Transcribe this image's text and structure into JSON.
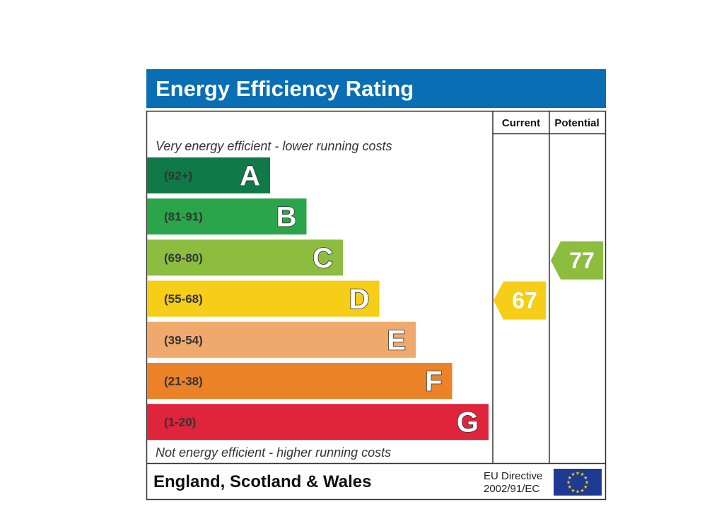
{
  "title": "Energy Efficiency Rating",
  "columns": {
    "current": "Current",
    "potential": "Potential"
  },
  "top_note": "Very energy efficient - lower running costs",
  "bottom_note": "Not energy efficient - higher running costs",
  "region": "England, Scotland & Wales",
  "directive": {
    "line1": "EU Directive",
    "line2": "2002/91/EC"
  },
  "colors": {
    "header": "#0a6eb5",
    "border": "#333333"
  },
  "chart_data": {
    "type": "bar",
    "bands": [
      {
        "letter": "A",
        "range": "(92+)",
        "min": 92,
        "max": 100,
        "color": "#0f7a48"
      },
      {
        "letter": "B",
        "range": "(81-91)",
        "min": 81,
        "max": 91,
        "color": "#2aa54a"
      },
      {
        "letter": "C",
        "range": "(69-80)",
        "min": 69,
        "max": 80,
        "color": "#8cbd3f"
      },
      {
        "letter": "D",
        "range": "(55-68)",
        "min": 55,
        "max": 68,
        "color": "#f6cd17"
      },
      {
        "letter": "E",
        "range": "(39-54)",
        "min": 39,
        "max": 54,
        "color": "#f0a96d"
      },
      {
        "letter": "F",
        "range": "(21-38)",
        "min": 21,
        "max": 38,
        "color": "#ec8228"
      },
      {
        "letter": "G",
        "range": "(1-20)",
        "min": 1,
        "max": 20,
        "color": "#e0243c"
      }
    ],
    "current": {
      "value": 67,
      "band": "D"
    },
    "potential": {
      "value": 77,
      "band": "C"
    }
  }
}
